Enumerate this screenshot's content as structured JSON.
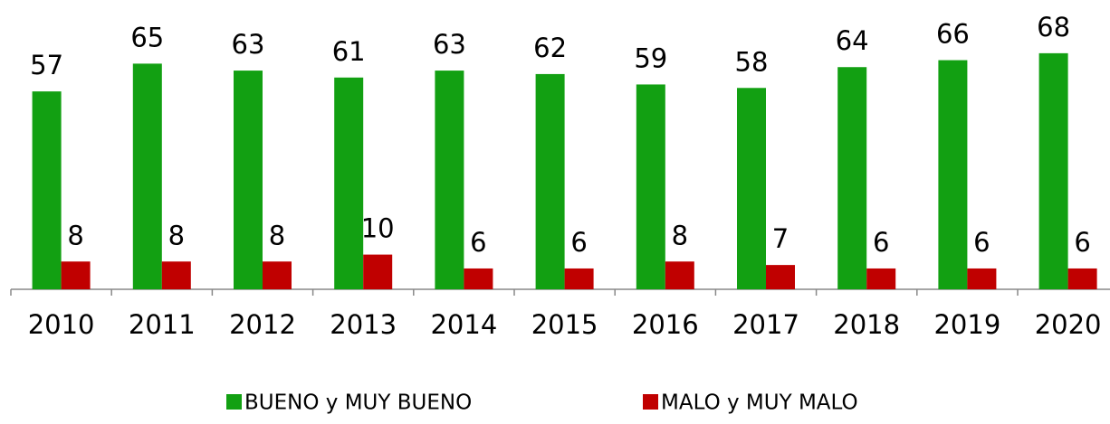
{
  "chart_data": {
    "type": "bar",
    "categories": [
      "2010",
      "2011",
      "2012",
      "2013",
      "2014",
      "2015",
      "2016",
      "2017",
      "2018",
      "2019",
      "2020"
    ],
    "series": [
      {
        "name": "BUENO y MUY BUENO",
        "color": "#12a012",
        "values": [
          57,
          65,
          63,
          61,
          63,
          62,
          59,
          58,
          64,
          66,
          68
        ]
      },
      {
        "name": "MALO y MUY MALO",
        "color": "#c00000",
        "values": [
          8,
          8,
          8,
          10,
          6,
          6,
          8,
          7,
          6,
          6,
          6
        ]
      }
    ]
  }
}
